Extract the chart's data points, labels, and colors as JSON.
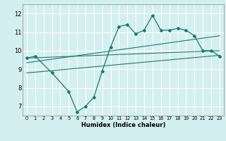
{
  "xlabel": "Humidex (Indice chaleur)",
  "bg_color": "#d4efef",
  "grid_color": "#ffffff",
  "line_color": "#1a7a6e",
  "xlim": [
    -0.5,
    23.5
  ],
  "ylim": [
    6.5,
    12.5
  ],
  "xticks": [
    0,
    1,
    2,
    3,
    4,
    5,
    6,
    7,
    8,
    9,
    10,
    11,
    12,
    13,
    14,
    15,
    16,
    17,
    18,
    19,
    20,
    21,
    22,
    23
  ],
  "yticks": [
    7,
    8,
    9,
    10,
    11,
    12
  ],
  "main_x": [
    0,
    1,
    3,
    5,
    6,
    7,
    8,
    9,
    10,
    11,
    12,
    13,
    14,
    15,
    16,
    17,
    18,
    19,
    20,
    21,
    22,
    23
  ],
  "main_y": [
    9.6,
    9.7,
    8.8,
    7.8,
    6.7,
    7.0,
    7.5,
    8.9,
    10.2,
    11.3,
    11.4,
    10.9,
    11.1,
    11.9,
    11.1,
    11.1,
    11.2,
    11.1,
    10.8,
    10.0,
    10.0,
    9.7
  ],
  "reg_line1_x": [
    0,
    23
  ],
  "reg_line1_y": [
    9.6,
    10.0
  ],
  "reg_line2_x": [
    0,
    23
  ],
  "reg_line2_y": [
    9.35,
    10.8
  ],
  "reg_line3_x": [
    0,
    23
  ],
  "reg_line3_y": [
    8.8,
    9.75
  ]
}
